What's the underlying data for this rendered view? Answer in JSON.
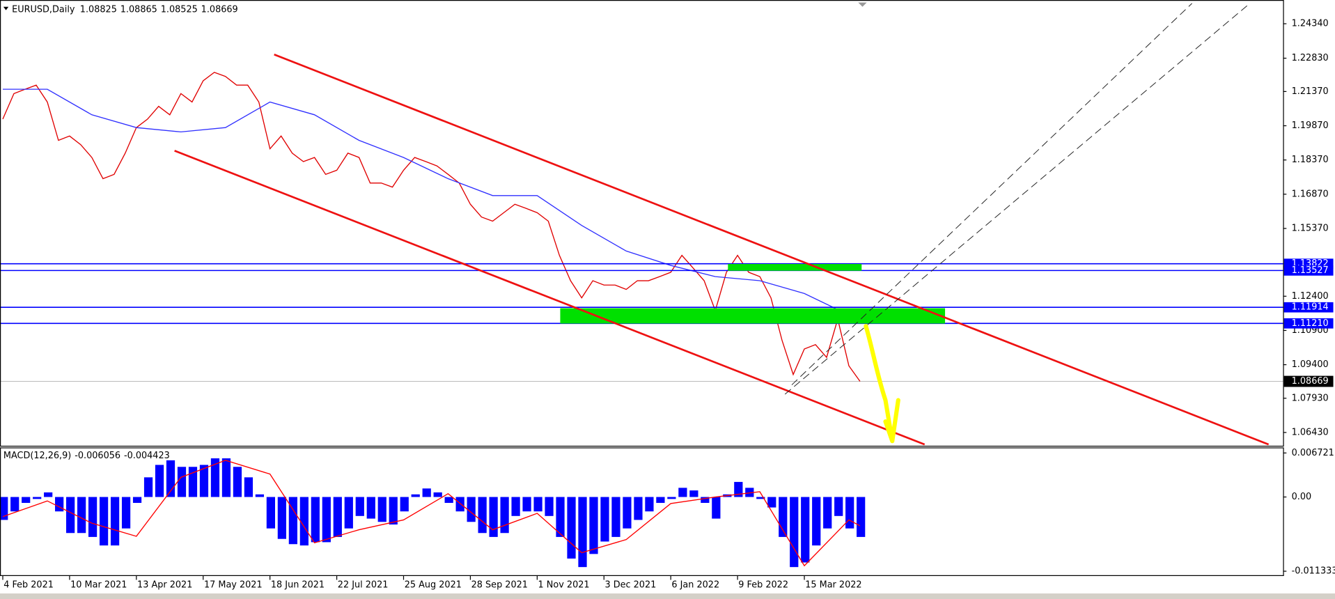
{
  "chart_data": [
    {
      "type": "line",
      "title": "EURUSD,Daily",
      "quote": [
        1.08825,
        1.08865,
        1.08525,
        1.08669
      ],
      "xlim": [
        -1,
        460
      ],
      "ylim": [
        1.0583,
        1.2538
      ],
      "yticks": [
        {
          "value": 1.2434,
          "label": "1.24340"
        },
        {
          "value": 1.2283,
          "label": "1.22830"
        },
        {
          "value": 1.2137,
          "label": "1.21370"
        },
        {
          "value": 1.1987,
          "label": "1.19870"
        },
        {
          "value": 1.1837,
          "label": "1.18370"
        },
        {
          "value": 1.1687,
          "label": "1.16870"
        },
        {
          "value": 1.1537,
          "label": "1.15370"
        },
        {
          "value": 1.124,
          "label": "1.12400"
        },
        {
          "value": 1.109,
          "label": "1.10900"
        },
        {
          "value": 1.094,
          "label": "1.09400"
        },
        {
          "value": 1.0793,
          "label": "1.07930"
        },
        {
          "value": 1.0643,
          "label": "1.06430"
        }
      ],
      "levels": [
        1.13822,
        1.13527,
        1.11914,
        {
          "value": 1.1121,
          "label": "1.11210"
        }
      ],
      "level_color": "#0000ff",
      "current_price": 1.08669,
      "series": [
        {
          "color": "#e00000",
          "x": [
            0,
            4,
            8,
            12,
            16,
            20,
            24,
            28,
            32,
            36,
            40,
            44,
            48,
            52,
            56,
            60,
            64,
            68,
            72,
            76,
            80,
            84,
            88,
            92,
            96,
            100,
            104,
            108,
            112,
            116,
            120,
            124,
            128,
            132,
            136,
            140,
            144,
            148,
            152,
            156,
            160,
            164,
            168,
            172,
            176,
            180,
            184,
            188,
            192,
            196,
            200,
            204,
            208,
            212,
            216,
            220,
            224,
            228,
            232,
            236,
            240,
            244,
            248,
            252,
            256,
            260,
            264,
            268,
            272,
            276,
            280,
            284,
            288,
            292,
            296,
            300,
            304,
            308
          ],
          "values": [
            1.2016,
            1.2128,
            1.2147,
            1.2165,
            1.2091,
            1.1923,
            1.1942,
            1.1904,
            1.1848,
            1.1755,
            1.1774,
            1.1867,
            1.1979,
            1.2016,
            1.2072,
            1.2035,
            1.2128,
            1.2091,
            1.2184,
            1.2221,
            1.2203,
            1.2165,
            1.2165,
            1.2091,
            1.1886,
            1.1942,
            1.1867,
            1.183,
            1.1848,
            1.1774,
            1.1792,
            1.1867,
            1.1848,
            1.1736,
            1.1736,
            1.1718,
            1.1792,
            1.1848,
            1.183,
            1.1811,
            1.1774,
            1.1736,
            1.1643,
            1.1587,
            1.1569,
            1.1606,
            1.1643,
            1.1625,
            1.1606,
            1.1569,
            1.1419,
            1.1308,
            1.1233,
            1.1308,
            1.1289,
            1.1289,
            1.127,
            1.1308,
            1.1308,
            1.1326,
            1.1345,
            1.1419,
            1.1364,
            1.1308,
            1.1177,
            1.1345,
            1.1419,
            1.1345,
            1.1326,
            1.1233,
            1.1046,
            1.0897,
            1.1009,
            1.1028,
            1.0972,
            1.114,
            1.0935,
            1.0867
          ]
        },
        {
          "color": "#3030ff",
          "x": [
            0,
            16,
            32,
            48,
            64,
            80,
            96,
            112,
            128,
            144,
            160,
            176,
            192,
            208,
            224,
            240,
            256,
            272,
            288,
            304,
            308
          ],
          "values": [
            1.2147,
            1.2147,
            1.2035,
            1.1979,
            1.196,
            1.1979,
            1.2091,
            1.2035,
            1.1923,
            1.1848,
            1.1755,
            1.1681,
            1.1681,
            1.155,
            1.1438,
            1.1375,
            1.1326,
            1.1308,
            1.1252,
            1.1158,
            1.114
          ]
        }
      ]
    },
    {
      "type": "macd",
      "title": "MACD(12,26,9)",
      "quote": [
        -0.006056,
        -0.004423
      ],
      "xlim": [
        -1,
        460
      ],
      "ylim": [
        -0.012,
        0.0075
      ],
      "yticks": [
        0.006721,
        {
          "value": 0,
          "label": "0.00"
        },
        -0.011333
      ],
      "xticks": [
        {
          "value": 0,
          "label": "4 Feb 2021"
        },
        {
          "value": 24,
          "label": "10 Mar 2021"
        },
        {
          "value": 48,
          "label": "13 Apr 2021"
        },
        {
          "value": 72,
          "label": "17 May 2021"
        },
        {
          "value": 96,
          "label": "18 Jun 2021"
        },
        {
          "value": 120,
          "label": "22 Jul 2021"
        },
        {
          "value": 144,
          "label": "25 Aug 2021"
        },
        {
          "value": 168,
          "label": "28 Sep 2021"
        },
        {
          "value": 192,
          "label": "1 Nov 2021"
        },
        {
          "value": 216,
          "label": "3 Dec 2021"
        },
        {
          "value": 240,
          "label": "6 Jan 2022"
        },
        {
          "value": 264,
          "label": "9 Feb 2022"
        },
        {
          "value": 288,
          "label": "15 Mar 2022"
        }
      ],
      "series": [
        {
          "type": "bar",
          "color": "#0000ff",
          "x": [
            0,
            4,
            8,
            12,
            16,
            20,
            24,
            28,
            32,
            36,
            40,
            44,
            48,
            52,
            56,
            60,
            64,
            68,
            72,
            76,
            80,
            84,
            88,
            92,
            96,
            100,
            104,
            108,
            112,
            116,
            120,
            124,
            128,
            132,
            136,
            140,
            144,
            148,
            152,
            156,
            160,
            164,
            168,
            172,
            176,
            180,
            184,
            188,
            192,
            196,
            200,
            204,
            208,
            212,
            216,
            220,
            224,
            228,
            232,
            236,
            240,
            244,
            248,
            252,
            256,
            260,
            264,
            268,
            272,
            276,
            280,
            284,
            288,
            292,
            296,
            300,
            304,
            308
          ],
          "values": [
            -0.0035,
            -0.0022,
            -0.0009,
            -0.0003,
            0.0007,
            -0.0022,
            -0.0055,
            -0.0055,
            -0.0061,
            -0.0074,
            -0.0074,
            -0.0048,
            -0.0009,
            0.003,
            0.0049,
            0.0056,
            0.0046,
            0.0046,
            0.0049,
            0.0059,
            0.0059,
            0.0046,
            0.003,
            0.0004,
            -0.0048,
            -0.0064,
            -0.0072,
            -0.0074,
            -0.0069,
            -0.0069,
            -0.0061,
            -0.0048,
            -0.0029,
            -0.0033,
            -0.0038,
            -0.0042,
            -0.0022,
            0.0004,
            0.0013,
            0.0007,
            -0.0009,
            -0.0022,
            -0.0038,
            -0.0055,
            -0.0061,
            -0.0055,
            -0.0029,
            -0.0022,
            -0.0022,
            -0.0029,
            -0.0061,
            -0.0094,
            -0.0107,
            -0.0087,
            -0.0068,
            -0.0061,
            -0.0048,
            -0.0035,
            -0.0022,
            -0.0009,
            -0.0003,
            0.0014,
            0.001,
            -0.0009,
            -0.0033,
            0.0004,
            0.0023,
            0.0014,
            -0.0003,
            -0.0016,
            -0.0061,
            -0.0107,
            -0.01,
            -0.0074,
            -0.0048,
            -0.0029,
            -0.0048,
            -0.0061
          ]
        },
        {
          "type": "line",
          "color": "#ff0000",
          "x": [
            0,
            16,
            32,
            48,
            64,
            80,
            96,
            112,
            128,
            144,
            160,
            176,
            192,
            208,
            224,
            240,
            256,
            272,
            288,
            304,
            308
          ],
          "values": [
            -0.003,
            -0.0006,
            -0.004,
            -0.006,
            0.003,
            0.0056,
            0.0035,
            -0.007,
            -0.005,
            -0.0035,
            0.0005,
            -0.005,
            -0.0025,
            -0.0085,
            -0.0065,
            -0.001,
            0,
            0.0008,
            -0.0105,
            -0.0035,
            -0.0044
          ]
        }
      ]
    }
  ]
}
